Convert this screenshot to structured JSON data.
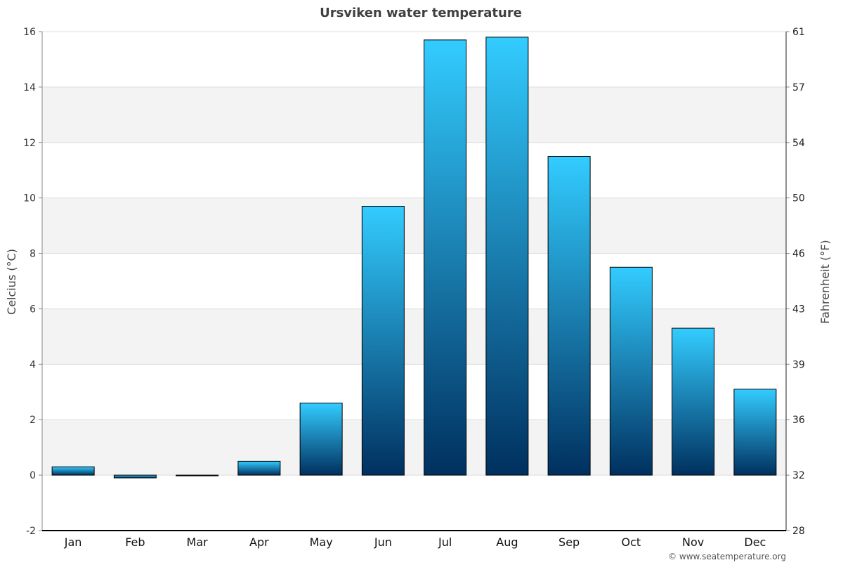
{
  "chart_data": {
    "type": "bar",
    "title": "Ursviken water temperature",
    "categories": [
      "Jan",
      "Feb",
      "Mar",
      "Apr",
      "May",
      "Jun",
      "Jul",
      "Aug",
      "Sep",
      "Oct",
      "Nov",
      "Dec"
    ],
    "values": [
      0.3,
      -0.1,
      0.0,
      0.5,
      2.6,
      9.7,
      15.7,
      15.8,
      11.5,
      7.5,
      5.3,
      3.1
    ],
    "ylabel": "Celcius (°C)",
    "ylabel_right": "Fahrenheit (°F)",
    "ylim": [
      -2,
      16
    ],
    "yticks": [
      "-2",
      "0",
      "2",
      "4",
      "6",
      "8",
      "10",
      "12",
      "14",
      "16"
    ],
    "yticks_right": [
      "28",
      "32",
      "36",
      "39",
      "43",
      "46",
      "50",
      "54",
      "57",
      "61"
    ],
    "grid": "horizontal alternating bands",
    "legend": "none",
    "colors": {
      "bar_top": "#33ccff",
      "bar_bottom": "#00305f",
      "band": "#f3f3f3",
      "gridline": "#dddddd",
      "title": "#404040"
    }
  },
  "credit": "© www.seatemperature.org"
}
